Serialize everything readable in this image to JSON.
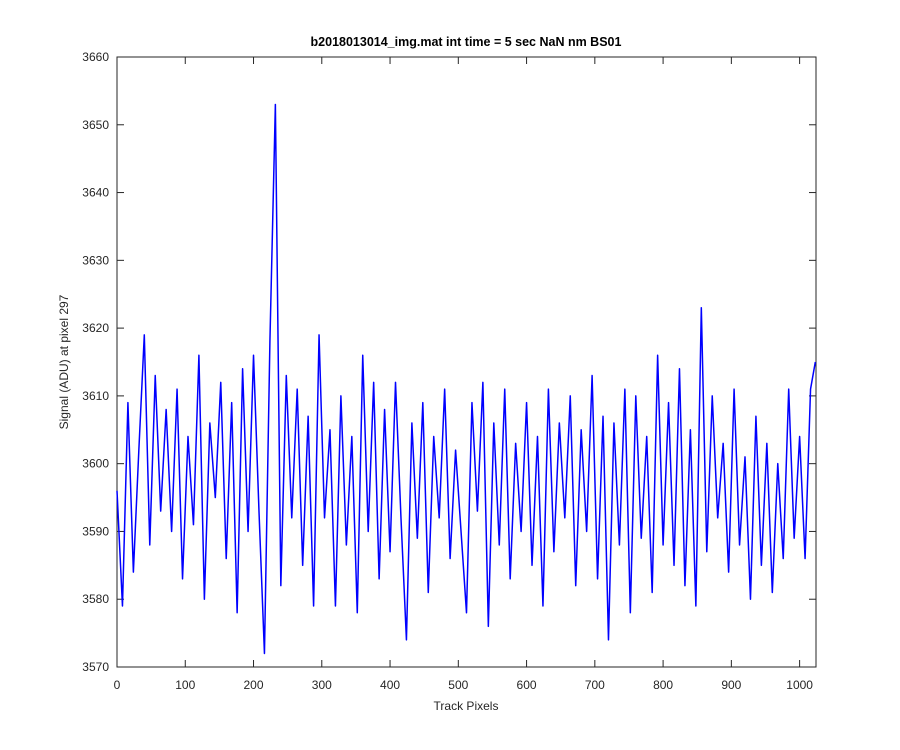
{
  "chart_data": {
    "type": "line",
    "title": "b2018013014_img.mat int time = 5 sec  NaN nm BS01",
    "xlabel": "Track Pixels",
    "ylabel": "Signal (ADU) at pixel 297",
    "x": [
      0,
      8,
      16,
      24,
      32,
      40,
      48,
      56,
      64,
      72,
      80,
      88,
      96,
      104,
      112,
      120,
      128,
      136,
      144,
      152,
      160,
      168,
      176,
      184,
      192,
      200,
      208,
      216,
      224,
      232,
      240,
      248,
      256,
      264,
      272,
      280,
      288,
      296,
      304,
      312,
      320,
      328,
      336,
      344,
      352,
      360,
      368,
      376,
      384,
      392,
      400,
      408,
      416,
      424,
      432,
      440,
      448,
      456,
      464,
      472,
      480,
      488,
      496,
      504,
      512,
      520,
      528,
      536,
      544,
      552,
      560,
      568,
      576,
      584,
      592,
      600,
      608,
      616,
      624,
      632,
      640,
      648,
      656,
      664,
      672,
      680,
      688,
      696,
      704,
      712,
      720,
      728,
      736,
      744,
      752,
      760,
      768,
      776,
      784,
      792,
      800,
      808,
      816,
      824,
      832,
      840,
      848,
      856,
      864,
      872,
      880,
      888,
      896,
      904,
      912,
      920,
      928,
      936,
      944,
      952,
      960,
      968,
      976,
      984,
      992,
      1000,
      1008,
      1016,
      1023
    ],
    "series": [
      {
        "name": "signal",
        "color": "#0000ff",
        "values": [
          3596,
          3579,
          3609,
          3584,
          3602,
          3619,
          3588,
          3613,
          3593,
          3608,
          3590,
          3611,
          3583,
          3604,
          3591,
          3616,
          3580,
          3606,
          3595,
          3612,
          3586,
          3609,
          3578,
          3614,
          3590,
          3616,
          3593,
          3572,
          3618,
          3653,
          3582,
          3613,
          3592,
          3611,
          3585,
          3607,
          3579,
          3619,
          3592,
          3605,
          3579,
          3610,
          3588,
          3604,
          3578,
          3616,
          3590,
          3612,
          3583,
          3608,
          3587,
          3612,
          3592,
          3574,
          3606,
          3589,
          3609,
          3581,
          3604,
          3592,
          3611,
          3586,
          3602,
          3590,
          3578,
          3609,
          3593,
          3612,
          3576,
          3606,
          3588,
          3611,
          3583,
          3603,
          3590,
          3609,
          3585,
          3604,
          3579,
          3611,
          3587,
          3606,
          3592,
          3610,
          3582,
          3605,
          3590,
          3613,
          3583,
          3607,
          3574,
          3606,
          3588,
          3611,
          3578,
          3610,
          3589,
          3604,
          3581,
          3616,
          3588,
          3609,
          3585,
          3614,
          3582,
          3605,
          3579,
          3623,
          3587,
          3610,
          3592,
          3603,
          3584,
          3611,
          3588,
          3601,
          3580,
          3607,
          3585,
          3603,
          3581,
          3600,
          3586,
          3611,
          3589,
          3604,
          3586,
          3611,
          3615
        ]
      }
    ],
    "xlim": [
      0,
      1024
    ],
    "ylim": [
      3570,
      3660
    ],
    "xticks": [
      0,
      100,
      200,
      300,
      400,
      500,
      600,
      700,
      800,
      900,
      1000
    ],
    "yticks": [
      3570,
      3580,
      3590,
      3600,
      3610,
      3620,
      3630,
      3640,
      3650,
      3660
    ],
    "grid": false
  }
}
